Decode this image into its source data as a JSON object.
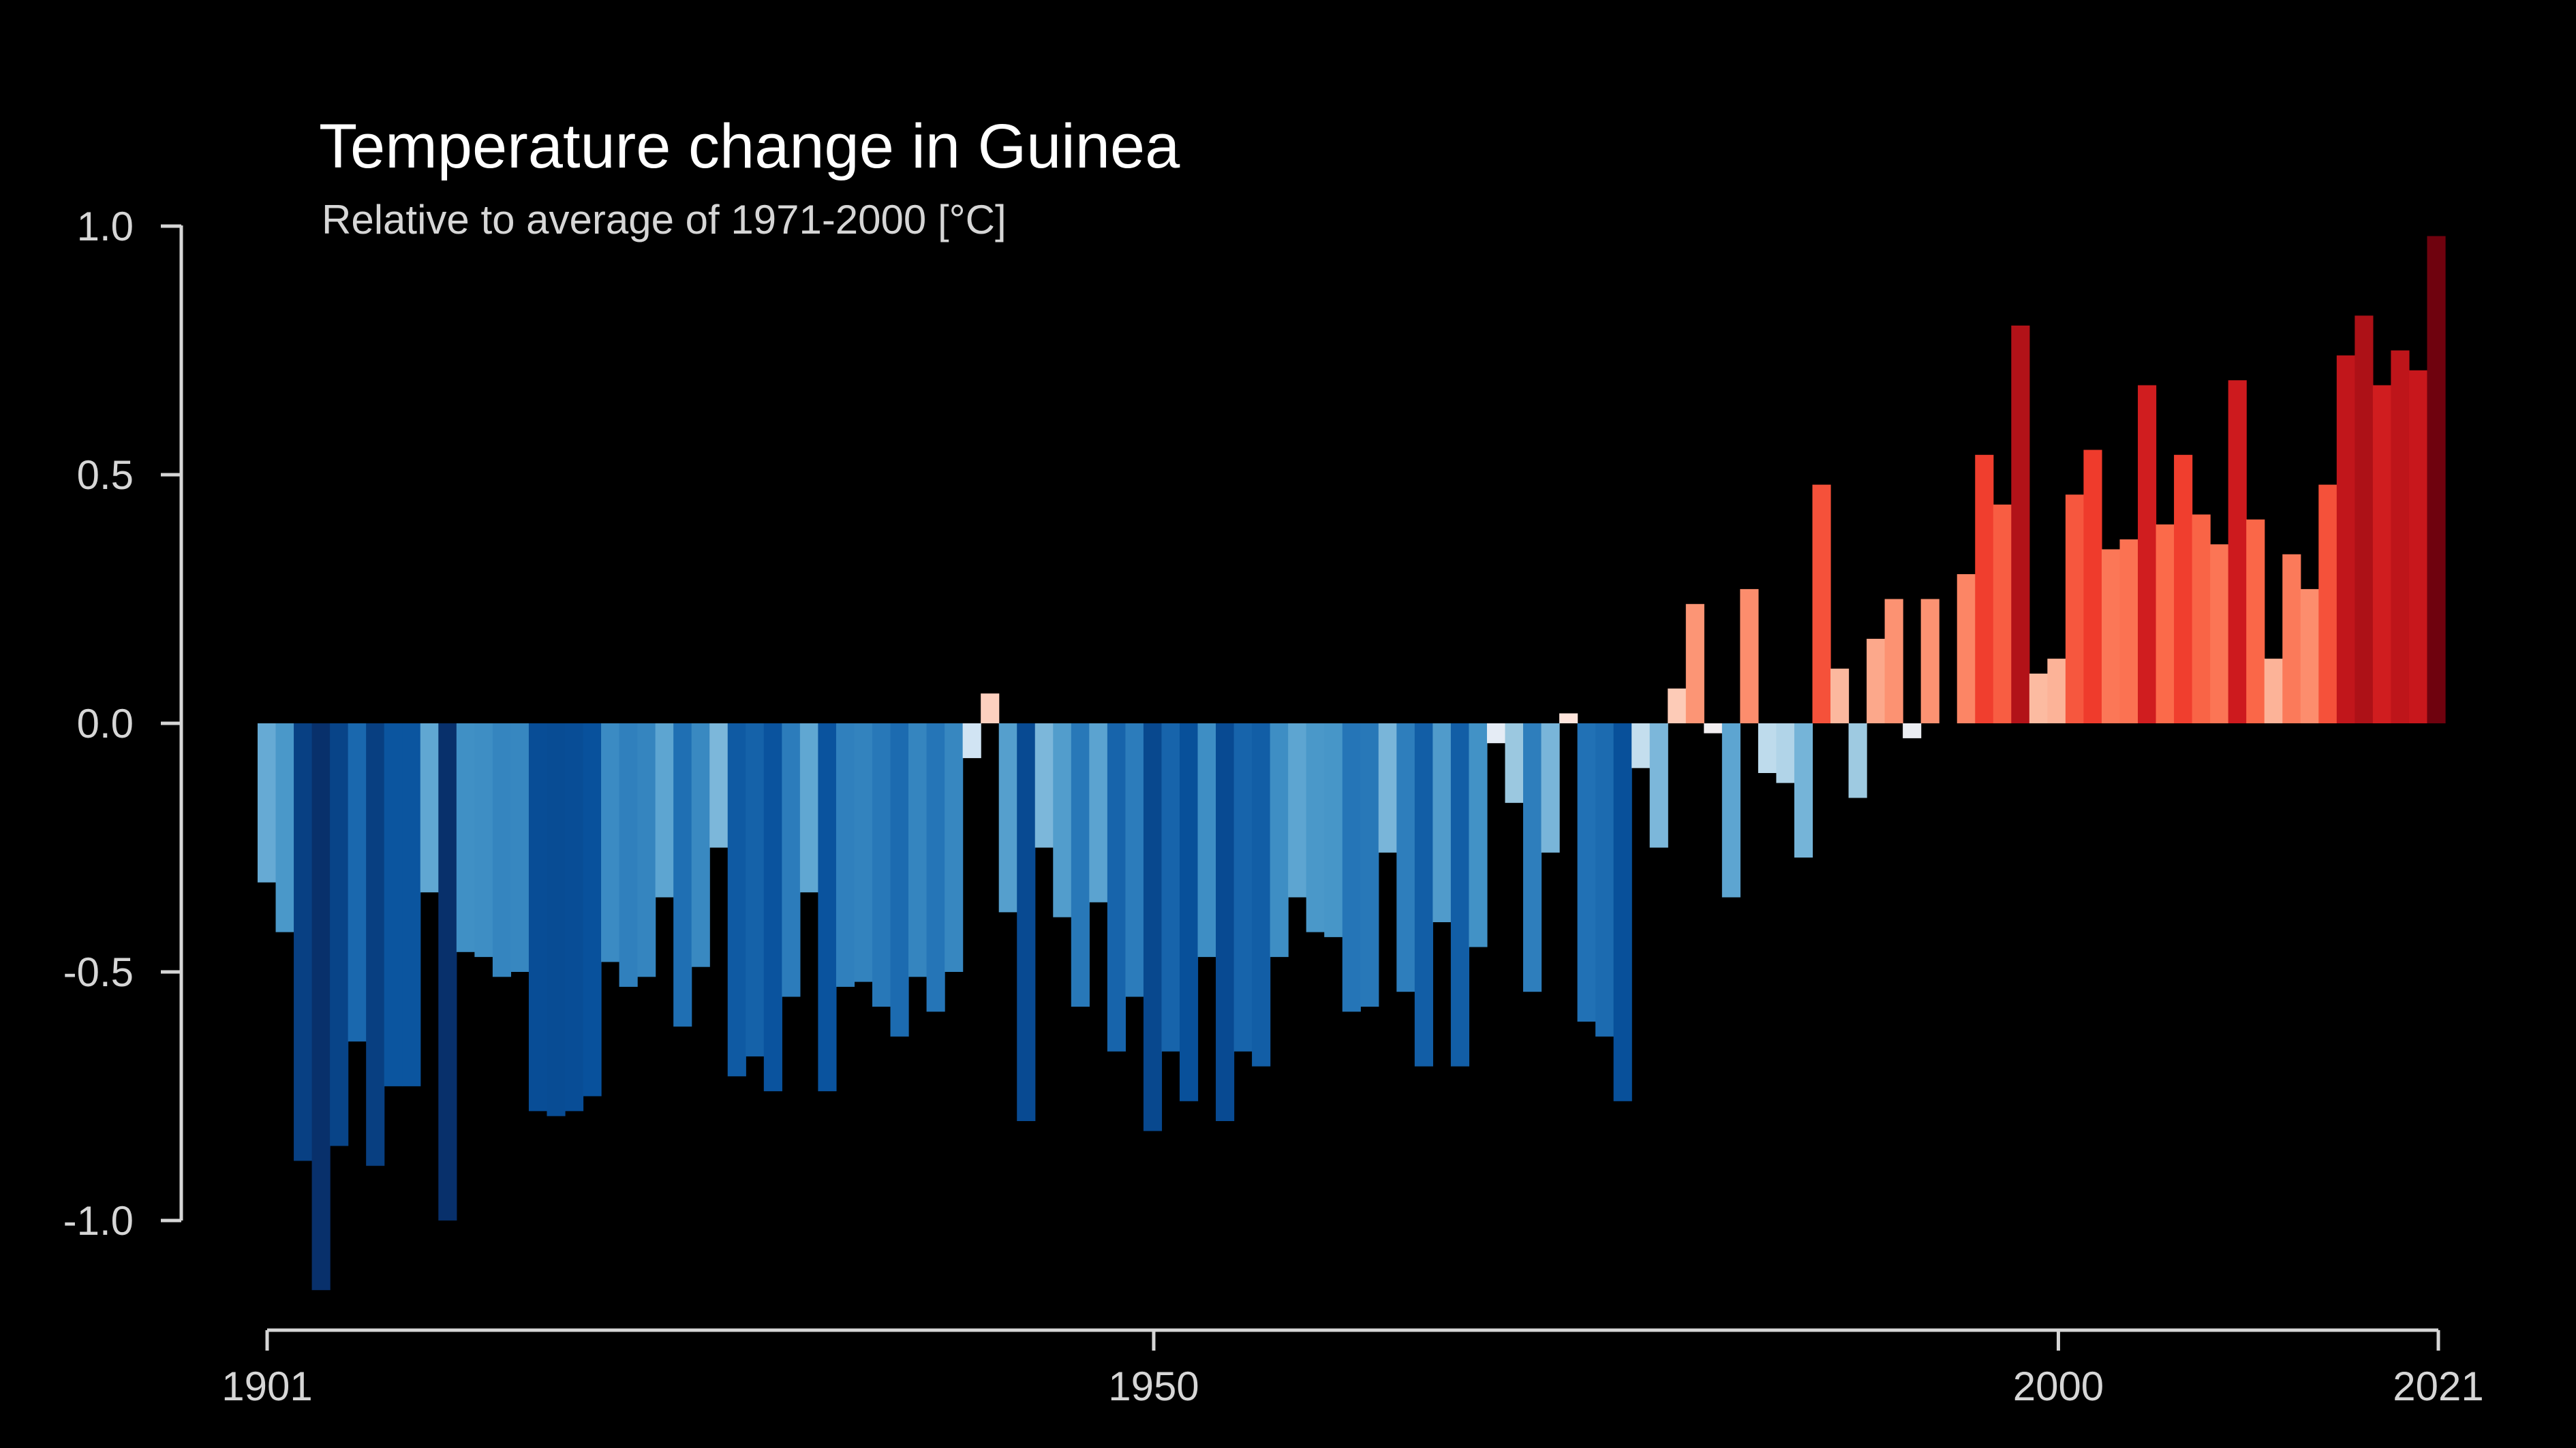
{
  "chart_data": {
    "type": "bar",
    "title": "Temperature change in Guinea",
    "subtitle": "Relative to average of 1971-2000  [°C]",
    "xlabel": "",
    "ylabel": "",
    "x_start": 1901,
    "x_end": 2021,
    "ylim": [
      -1.15,
      1.0
    ],
    "y_ticks": [
      {
        "value": 1.0,
        "label": "1.0"
      },
      {
        "value": 0.5,
        "label": "0.5"
      },
      {
        "value": 0.0,
        "label": "0.0"
      },
      {
        "value": -0.5,
        "label": "-0.5"
      },
      {
        "value": -1.0,
        "label": "-1.0"
      }
    ],
    "x_ticks": [
      {
        "value": 1901,
        "label": "1901"
      },
      {
        "value": 1950,
        "label": "1950"
      },
      {
        "value": 2000,
        "label": "2000"
      },
      {
        "value": 2021,
        "label": "2021"
      }
    ],
    "grid": false,
    "color_scale": "blue-to-red diverging (warming stripes)",
    "values": [
      -0.32,
      -0.42,
      -0.88,
      -1.14,
      -0.85,
      -0.64,
      -0.89,
      -0.73,
      -0.73,
      -0.34,
      -1.0,
      -0.46,
      -0.47,
      -0.51,
      -0.5,
      -0.78,
      -0.79,
      -0.78,
      -0.75,
      -0.48,
      -0.53,
      -0.51,
      -0.35,
      -0.61,
      -0.49,
      -0.25,
      -0.71,
      -0.67,
      -0.74,
      -0.55,
      -0.34,
      -0.74,
      -0.53,
      -0.52,
      -0.57,
      -0.63,
      -0.51,
      -0.58,
      -0.5,
      -0.07,
      0.06,
      -0.38,
      -0.8,
      -0.25,
      -0.39,
      -0.57,
      -0.36,
      -0.66,
      -0.55,
      -0.82,
      -0.66,
      -0.76,
      -0.47,
      -0.8,
      -0.66,
      -0.69,
      -0.47,
      -0.35,
      -0.42,
      -0.43,
      -0.58,
      -0.57,
      -0.26,
      -0.54,
      -0.69,
      -0.4,
      -0.69,
      -0.45,
      -0.04,
      -0.16,
      -0.54,
      -0.26,
      0.02,
      -0.6,
      -0.63,
      -0.76,
      -0.09,
      -0.25,
      0.07,
      0.24,
      -0.02,
      -0.35,
      0.27,
      -0.1,
      -0.12,
      -0.27,
      0.48,
      0.11,
      -0.15,
      0.17,
      0.25,
      -0.03,
      0.25,
      0.0,
      0.3,
      0.54,
      0.44,
      0.8,
      0.1,
      0.13,
      0.46,
      0.55,
      0.35,
      0.37,
      0.68,
      0.4,
      0.54,
      0.42,
      0.36,
      0.69,
      0.41,
      0.13,
      0.34,
      0.27,
      0.48,
      0.74,
      0.82,
      0.68,
      0.75,
      0.71,
      0.98
    ]
  }
}
